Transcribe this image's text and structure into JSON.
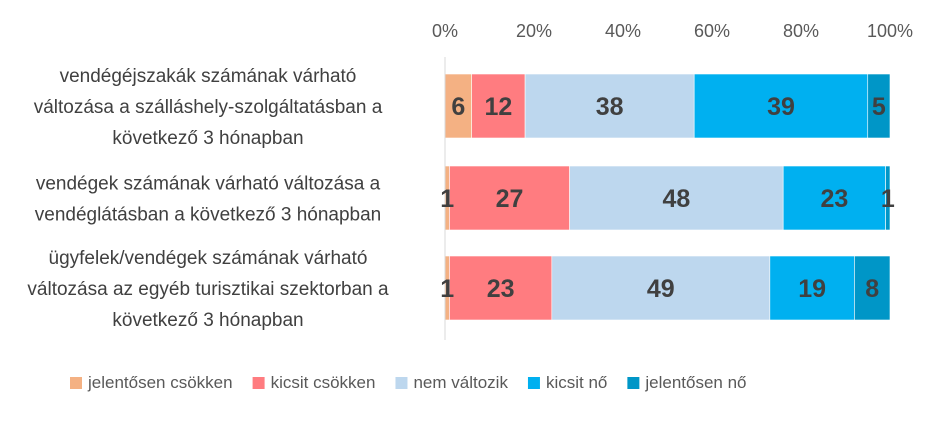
{
  "chart_data": {
    "type": "bar",
    "orientation": "horizontal",
    "stacked": "percent",
    "title": "",
    "xlabel": "",
    "ylabel": "",
    "xlim": [
      0,
      100
    ],
    "x_ticks": [
      "0%",
      "20%",
      "40%",
      "60%",
      "80%",
      "100%"
    ],
    "x_axis_position": "top",
    "grid": false,
    "legend_position": "bottom",
    "categories": [
      [
        "vendégéjszakák számának várható",
        "változása a szálláshely-szolgáltatásban a",
        "következő 3 hónapban"
      ],
      [
        "vendégek számának várható változása a",
        "vendéglátásban a következő 3 hónapban"
      ],
      [
        "ügyfelek/vendégek számának várható",
        "változása az egyéb turisztikai szektorban a",
        "következő 3 hónapban"
      ]
    ],
    "series": [
      {
        "name": "jelentősen csökken",
        "color": "#F4B183",
        "values": [
          6,
          1,
          1
        ]
      },
      {
        "name": "kicsit csökken",
        "color": "#FF7C80",
        "values": [
          12,
          27,
          23
        ]
      },
      {
        "name": "nem változik",
        "color": "#BDD7EE",
        "values": [
          38,
          48,
          49
        ]
      },
      {
        "name": "kicsit nő",
        "color": "#00B0F0",
        "values": [
          39,
          23,
          19
        ]
      },
      {
        "name": "jelentősen nő",
        "color": "#0096C7",
        "values": [
          5,
          1,
          8
        ]
      }
    ]
  }
}
